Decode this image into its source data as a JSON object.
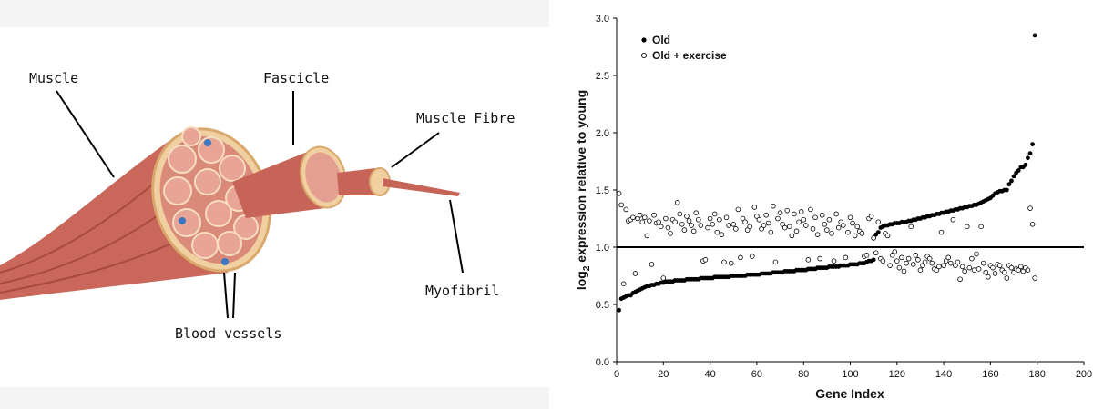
{
  "diagram": {
    "labels": [
      "Muscle",
      "Fascicle",
      "Muscle Fibre",
      "Myofibril",
      "Blood vessels"
    ]
  },
  "chart_data": {
    "type": "scatter",
    "xlabel": "Gene Index",
    "ylabel_parts": [
      "log",
      "2",
      " expression relative to young"
    ],
    "xlim": [
      0,
      200
    ],
    "xticks": [
      0,
      20,
      40,
      60,
      80,
      100,
      120,
      140,
      160,
      180,
      200
    ],
    "ylim": [
      0,
      3
    ],
    "yticks": [
      {
        "value": 0,
        "label": "0.0"
      },
      0.5,
      {
        "value": 1,
        "label": "1.0"
      },
      1.5,
      {
        "value": 2,
        "label": "2.0"
      },
      2.5,
      {
        "value": 3,
        "label": "3.0"
      }
    ],
    "hline": 1,
    "legend": "top-left",
    "x": [
      1,
      2,
      3,
      4,
      5,
      6,
      7,
      8,
      9,
      10,
      11,
      12,
      13,
      14,
      15,
      16,
      17,
      18,
      19,
      20,
      21,
      22,
      23,
      24,
      25,
      26,
      27,
      28,
      29,
      30,
      31,
      32,
      33,
      34,
      35,
      36,
      37,
      38,
      39,
      40,
      41,
      42,
      43,
      44,
      45,
      46,
      47,
      48,
      49,
      50,
      51,
      52,
      53,
      54,
      55,
      56,
      57,
      58,
      59,
      60,
      61,
      62,
      63,
      64,
      65,
      66,
      67,
      68,
      69,
      70,
      71,
      72,
      73,
      74,
      75,
      76,
      77,
      78,
      79,
      80,
      81,
      82,
      83,
      84,
      85,
      86,
      87,
      88,
      89,
      90,
      91,
      92,
      93,
      94,
      95,
      96,
      97,
      98,
      99,
      100,
      101,
      102,
      103,
      104,
      105,
      106,
      107,
      108,
      109,
      110,
      111,
      112,
      113,
      114,
      115,
      116,
      117,
      118,
      119,
      120,
      121,
      122,
      123,
      124,
      125,
      126,
      127,
      128,
      129,
      130,
      131,
      132,
      133,
      134,
      135,
      136,
      137,
      138,
      139,
      140,
      141,
      142,
      143,
      144,
      145,
      146,
      147,
      148,
      149,
      150,
      151,
      152,
      153,
      154,
      155,
      156,
      157,
      158,
      159,
      160,
      161,
      162,
      163,
      164,
      165,
      166,
      167,
      168,
      169,
      170,
      171,
      172,
      173,
      174,
      175,
      176,
      177,
      178,
      179
    ],
    "series": [
      {
        "name": "Old",
        "color": "#000000",
        "marker": "filled",
        "values": [
          0.45,
          0.55,
          0.56,
          0.57,
          0.58,
          0.58,
          0.6,
          0.61,
          0.62,
          0.63,
          0.64,
          0.65,
          0.66,
          0.66,
          0.67,
          0.67,
          0.68,
          0.68,
          0.69,
          0.69,
          0.7,
          0.7,
          0.7,
          0.7,
          0.71,
          0.71,
          0.71,
          0.71,
          0.71,
          0.72,
          0.72,
          0.72,
          0.72,
          0.72,
          0.72,
          0.73,
          0.73,
          0.73,
          0.73,
          0.73,
          0.73,
          0.74,
          0.74,
          0.74,
          0.74,
          0.74,
          0.74,
          0.74,
          0.75,
          0.75,
          0.75,
          0.75,
          0.75,
          0.75,
          0.75,
          0.76,
          0.76,
          0.76,
          0.76,
          0.76,
          0.76,
          0.77,
          0.77,
          0.77,
          0.77,
          0.77,
          0.78,
          0.78,
          0.78,
          0.78,
          0.78,
          0.79,
          0.79,
          0.79,
          0.79,
          0.79,
          0.8,
          0.8,
          0.8,
          0.8,
          0.8,
          0.81,
          0.81,
          0.81,
          0.81,
          0.82,
          0.82,
          0.82,
          0.82,
          0.82,
          0.83,
          0.83,
          0.83,
          0.83,
          0.83,
          0.84,
          0.84,
          0.84,
          0.84,
          0.85,
          0.85,
          0.85,
          0.85,
          0.86,
          0.86,
          0.86,
          0.87,
          0.88,
          0.88,
          0.89,
          1.11,
          1.13,
          1.17,
          1.18,
          1.19,
          1.19,
          1.2,
          1.2,
          1.21,
          1.21,
          1.21,
          1.22,
          1.22,
          1.22,
          1.23,
          1.23,
          1.24,
          1.24,
          1.25,
          1.25,
          1.26,
          1.26,
          1.27,
          1.27,
          1.28,
          1.28,
          1.29,
          1.29,
          1.3,
          1.3,
          1.31,
          1.31,
          1.32,
          1.32,
          1.33,
          1.33,
          1.34,
          1.34,
          1.35,
          1.35,
          1.36,
          1.36,
          1.37,
          1.37,
          1.38,
          1.39,
          1.4,
          1.41,
          1.42,
          1.43,
          1.45,
          1.47,
          1.48,
          1.49,
          1.49,
          1.5,
          1.5,
          1.55,
          1.58,
          1.62,
          1.65,
          1.67,
          1.7,
          1.7,
          1.72,
          1.78,
          1.82,
          1.9,
          2.85
        ]
      },
      {
        "name": "Old + exercise",
        "color": "#000000",
        "marker": "open",
        "values": [
          1.47,
          1.37,
          0.68,
          1.33,
          1.23,
          1.24,
          1.26,
          0.77,
          1.25,
          1.28,
          1.22,
          1.26,
          1.1,
          1.23,
          0.85,
          1.28,
          1.21,
          1.22,
          1.18,
          0.73,
          1.25,
          1.17,
          1.12,
          1.24,
          1.22,
          1.39,
          1.29,
          1.2,
          1.15,
          1.27,
          1.23,
          1.19,
          1.14,
          1.3,
          1.24,
          1.19,
          0.88,
          0.89,
          1.17,
          1.25,
          1.2,
          1.29,
          1.13,
          1.24,
          1.11,
          0.87,
          1.26,
          1.19,
          0.86,
          1.2,
          1.16,
          1.33,
          0.91,
          1.25,
          1.22,
          1.15,
          1.18,
          0.92,
          1.35,
          1.27,
          1.24,
          1.16,
          1.19,
          1.28,
          1.21,
          1.13,
          1.36,
          0.87,
          1.25,
          1.3,
          1.2,
          1.17,
          1.32,
          1.18,
          1.1,
          1.29,
          1.14,
          1.22,
          1.31,
          1.24,
          1.19,
          0.89,
          1.33,
          1.16,
          1.26,
          1.11,
          0.9,
          1.28,
          1.2,
          1.15,
          1.24,
          1.12,
          0.88,
          1.29,
          1.17,
          1.22,
          1.19,
          0.91,
          1.13,
          1.26,
          1.21,
          1.1,
          1.18,
          1.14,
          1.12,
          0.92,
          0.93,
          1.25,
          1.27,
          1.08,
          0.95,
          1.22,
          0.9,
          0.88,
          1.12,
          1.1,
          0.84,
          0.93,
          0.96,
          0.88,
          0.82,
          0.91,
          0.79,
          0.86,
          0.9,
          1.18,
          0.85,
          0.93,
          0.89,
          0.8,
          0.84,
          0.87,
          0.92,
          0.9,
          0.86,
          0.81,
          0.8,
          0.83,
          1.13,
          0.84,
          0.88,
          0.91,
          0.86,
          1.24,
          0.84,
          0.87,
          0.72,
          0.83,
          0.79,
          1.18,
          0.82,
          0.9,
          0.8,
          0.94,
          0.81,
          1.18,
          0.86,
          0.78,
          0.74,
          0.84,
          0.82,
          0.77,
          0.85,
          0.84,
          0.8,
          0.78,
          0.73,
          0.84,
          0.82,
          0.78,
          0.81,
          0.8,
          0.83,
          0.79,
          0.82,
          0.8,
          1.34,
          1.2,
          0.73
        ]
      }
    ]
  }
}
